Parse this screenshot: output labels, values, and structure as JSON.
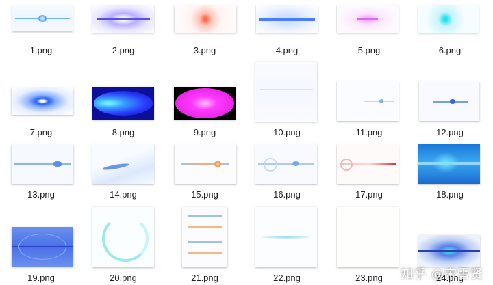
{
  "files": [
    {
      "name": "1.png"
    },
    {
      "name": "2.png"
    },
    {
      "name": "3.png"
    },
    {
      "name": "4.png"
    },
    {
      "name": "5.png"
    },
    {
      "name": "6.png"
    },
    {
      "name": "7.png"
    },
    {
      "name": "8.png"
    },
    {
      "name": "9.png"
    },
    {
      "name": "10.png"
    },
    {
      "name": "11.png"
    },
    {
      "name": "12.png"
    },
    {
      "name": "13.png"
    },
    {
      "name": "14.png"
    },
    {
      "name": "15.png"
    },
    {
      "name": "16.png"
    },
    {
      "name": "17.png"
    },
    {
      "name": "18.png"
    },
    {
      "name": "19.png"
    },
    {
      "name": "20.png"
    },
    {
      "name": "21.png"
    },
    {
      "name": "22.png"
    },
    {
      "name": "23.png"
    },
    {
      "name": "24.png"
    }
  ],
  "watermark": "知乎 @宋雪贤"
}
